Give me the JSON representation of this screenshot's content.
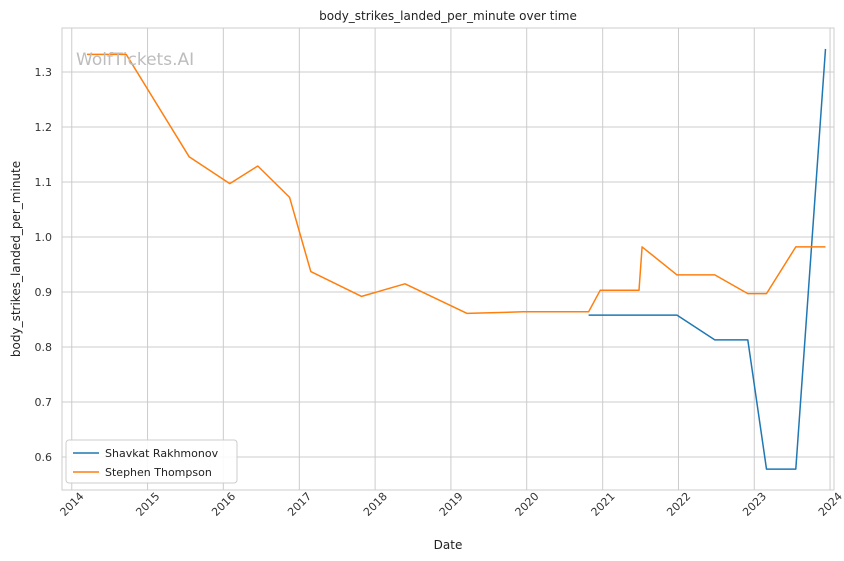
{
  "watermark": "WolfTickets.AI",
  "chart_data": {
    "type": "line",
    "title": "body_strikes_landed_per_minute over time",
    "xlabel": "Date",
    "ylabel": "body_strikes_landed_per_minute",
    "x_ticks": [
      "2014",
      "2015",
      "2016",
      "2017",
      "2018",
      "2019",
      "2020",
      "2021",
      "2022",
      "2023",
      "2024"
    ],
    "y_ticks": [
      "0.6",
      "0.7",
      "0.8",
      "0.9",
      "1.0",
      "1.1",
      "1.2",
      "1.3"
    ],
    "xlim": [
      "2013-11-15",
      "2024-01-20"
    ],
    "ylim": [
      0.54,
      1.38
    ],
    "grid": true,
    "legend_position": "lower-left",
    "series": [
      {
        "name": "Shavkat Rakhmonov",
        "color": "#1f77b4",
        "points": [
          [
            "2020-10-25",
            0.858
          ],
          [
            "2021-12-25",
            0.858
          ],
          [
            "2022-06-25",
            0.813
          ],
          [
            "2022-12-01",
            0.813
          ],
          [
            "2023-03-01",
            0.578
          ],
          [
            "2023-07-20",
            0.578
          ],
          [
            "2023-12-10",
            1.342
          ]
        ]
      },
      {
        "name": "Stephen Thompson",
        "color": "#ff7f0e",
        "points": [
          [
            "2014-03-15",
            1.332
          ],
          [
            "2014-09-20",
            1.332
          ],
          [
            "2015-07-20",
            1.146
          ],
          [
            "2016-02-01",
            1.097
          ],
          [
            "2016-06-15",
            1.129
          ],
          [
            "2016-11-15",
            1.072
          ],
          [
            "2017-02-25",
            0.937
          ],
          [
            "2017-10-28",
            0.892
          ],
          [
            "2018-05-25",
            0.915
          ],
          [
            "2019-03-20",
            0.861
          ],
          [
            "2019-12-14",
            0.864
          ],
          [
            "2020-10-25",
            0.864
          ],
          [
            "2020-12-20",
            0.903
          ],
          [
            "2021-06-25",
            0.903
          ],
          [
            "2021-07-10",
            0.982
          ],
          [
            "2021-12-25",
            0.931
          ],
          [
            "2022-06-25",
            0.931
          ],
          [
            "2022-12-01",
            0.897
          ],
          [
            "2023-03-01",
            0.897
          ],
          [
            "2023-07-20",
            0.982
          ],
          [
            "2023-12-10",
            0.982
          ]
        ]
      }
    ]
  }
}
